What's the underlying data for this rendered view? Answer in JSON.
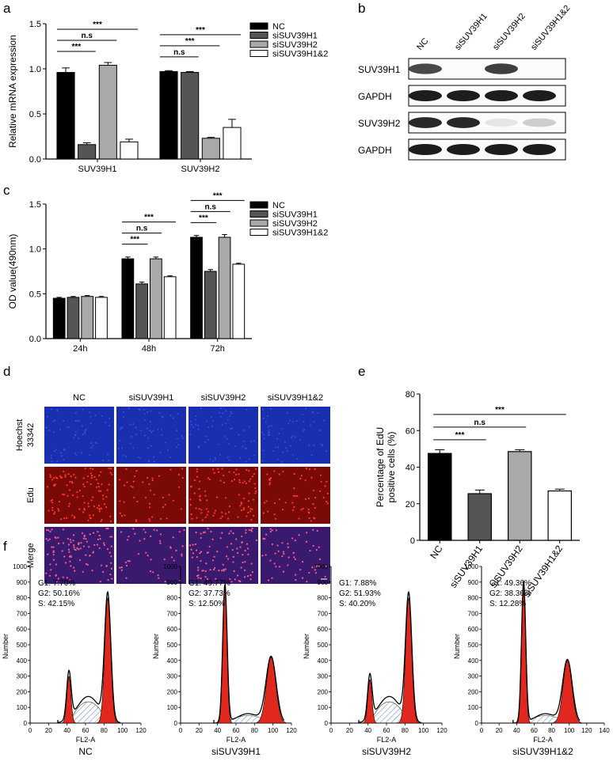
{
  "panels": {
    "a": "a",
    "b": "b",
    "c": "c",
    "d": "d",
    "e": "e",
    "f": "f"
  },
  "legend_labels": [
    "NC",
    "siSUV39H1",
    "siSUV39H2",
    "siSUV39H1&2"
  ],
  "colors": {
    "NC": "#000000",
    "siSUV39H1": "#555555",
    "siSUV39H2": "#a9a9a9",
    "siSUV39H1&2": "#ffffff",
    "red": "#e0281e",
    "blue_image": "#1830b0",
    "red_image": "#7a0a06"
  },
  "chart_data": [
    {
      "id": "a",
      "type": "bar",
      "ylabel": "Relative mRNA expression",
      "ylim": [
        0,
        1.5
      ],
      "yticks": [
        "0.0",
        "0.5",
        "1.0",
        "1.5"
      ],
      "categories": [
        "SUV39H1",
        "SUV39H2"
      ],
      "series": [
        {
          "name": "NC",
          "values": [
            0.96,
            0.97
          ],
          "err": [
            0.05,
            0.01
          ]
        },
        {
          "name": "siSUV39H1",
          "values": [
            0.16,
            0.96
          ],
          "err": [
            0.02,
            0.01
          ]
        },
        {
          "name": "siSUV39H2",
          "values": [
            1.04,
            0.23
          ],
          "err": [
            0.03,
            0.01
          ]
        },
        {
          "name": "siSUV39H1&2",
          "values": [
            0.19,
            0.35
          ],
          "err": [
            0.03,
            0.09
          ]
        }
      ],
      "sig": [
        {
          "group": 0,
          "to": 1,
          "label": "***"
        },
        {
          "group": 0,
          "to": 2,
          "label": "n.s"
        },
        {
          "group": 0,
          "to": 3,
          "label": "***"
        },
        {
          "group": 1,
          "to": 1,
          "label": "n.s"
        },
        {
          "group": 1,
          "to": 2,
          "label": "***"
        },
        {
          "group": 1,
          "to": 3,
          "label": "***"
        }
      ]
    },
    {
      "id": "c",
      "type": "bar",
      "ylabel": "OD value(490nm)",
      "ylim": [
        0,
        1.5
      ],
      "yticks": [
        "0.0",
        "0.5",
        "1.0",
        "1.5"
      ],
      "categories": [
        "24h",
        "48h",
        "72h"
      ],
      "series": [
        {
          "name": "NC",
          "values": [
            0.45,
            0.89,
            1.13
          ],
          "err": [
            0.01,
            0.02,
            0.02
          ]
        },
        {
          "name": "siSUV39H1",
          "values": [
            0.46,
            0.61,
            0.75
          ],
          "err": [
            0.01,
            0.02,
            0.02
          ]
        },
        {
          "name": "siSUV39H2",
          "values": [
            0.47,
            0.89,
            1.13
          ],
          "err": [
            0.01,
            0.02,
            0.03
          ]
        },
        {
          "name": "siSUV39H1&2",
          "values": [
            0.46,
            0.69,
            0.83
          ],
          "err": [
            0.01,
            0.01,
            0.01
          ]
        }
      ],
      "sig": [
        {
          "group": 1,
          "to": 1,
          "label": "***"
        },
        {
          "group": 1,
          "to": 2,
          "label": "n.s"
        },
        {
          "group": 1,
          "to": 3,
          "label": "***"
        },
        {
          "group": 2,
          "to": 1,
          "label": "***"
        },
        {
          "group": 2,
          "to": 2,
          "label": "n.s"
        },
        {
          "group": 2,
          "to": 3,
          "label": "***"
        }
      ]
    },
    {
      "id": "e",
      "type": "bar",
      "ylabel": "Percentage of EdU",
      "ylabel2": "positive cells (%)",
      "ylim": [
        0,
        80
      ],
      "yticks": [
        "0",
        "20",
        "40",
        "60",
        "80"
      ],
      "categories": [
        "NC",
        "siSUV39H1",
        "siSUV39H2",
        "siSUV39H1&2"
      ],
      "values": [
        47.5,
        25.5,
        48.5,
        27
      ],
      "err": [
        2,
        2,
        1,
        1
      ],
      "sig": [
        {
          "to": 1,
          "label": "***"
        },
        {
          "to": 2,
          "label": "n.s"
        },
        {
          "to": 3,
          "label": "***"
        }
      ]
    }
  ],
  "blot": {
    "lanes": [
      "NC",
      "siSUV39H1",
      "siSUV39H2",
      "siSUV39H1&2"
    ],
    "rows": [
      {
        "label": "SUV39H1",
        "intensity": [
          0.8,
          0.0,
          0.85,
          0.0
        ]
      },
      {
        "label": "GAPDH",
        "intensity": [
          1,
          1,
          1,
          1
        ]
      },
      {
        "label": "SUV39H2",
        "intensity": [
          0.95,
          0.95,
          0.1,
          0.2
        ]
      },
      {
        "label": "GAPDH",
        "intensity": [
          1,
          1,
          1,
          1
        ]
      }
    ]
  },
  "micro": {
    "columns": [
      "NC",
      "siSUV39H1",
      "siSUV39H2",
      "siSUV39H1&2"
    ],
    "row1": "Hoechst",
    "row1b": "33342",
    "row2": "Edu",
    "row3": "Merge"
  },
  "flow": {
    "xlabel": "FL2-A",
    "ylabel": "Number",
    "xticks": [
      "0",
      "20",
      "40",
      "60",
      "80",
      "100",
      "120"
    ],
    "xticks_last": "140",
    "yticks": [
      "0",
      "100",
      "200",
      "300",
      "400",
      "500",
      "600",
      "700",
      "800",
      "900",
      "1000"
    ],
    "plots": [
      {
        "title": "NC",
        "g1": "G1:  7.70%",
        "g2": "G2:  50.16%",
        "s": "S:  42.15%",
        "peak1": 0.3,
        "peak2": 0.8
      },
      {
        "title": "siSUV39H1",
        "g1": "G1:  49.77%",
        "g2": "G2:  37.73%",
        "s": "S:  12.50%",
        "peak1": 0.88,
        "peak2": 0.42
      },
      {
        "title": "siSUV39H2",
        "g1": "G1:  7.88%",
        "g2": "G2:  51.93%",
        "s": "S:  40.20%",
        "peak1": 0.28,
        "peak2": 0.8
      },
      {
        "title": "siSUV39H1&2",
        "g1": "G1:  49.36%",
        "g2": "G2:  38.36%",
        "s": "S:  12.28%",
        "peak1": 0.9,
        "peak2": 0.4
      }
    ]
  }
}
